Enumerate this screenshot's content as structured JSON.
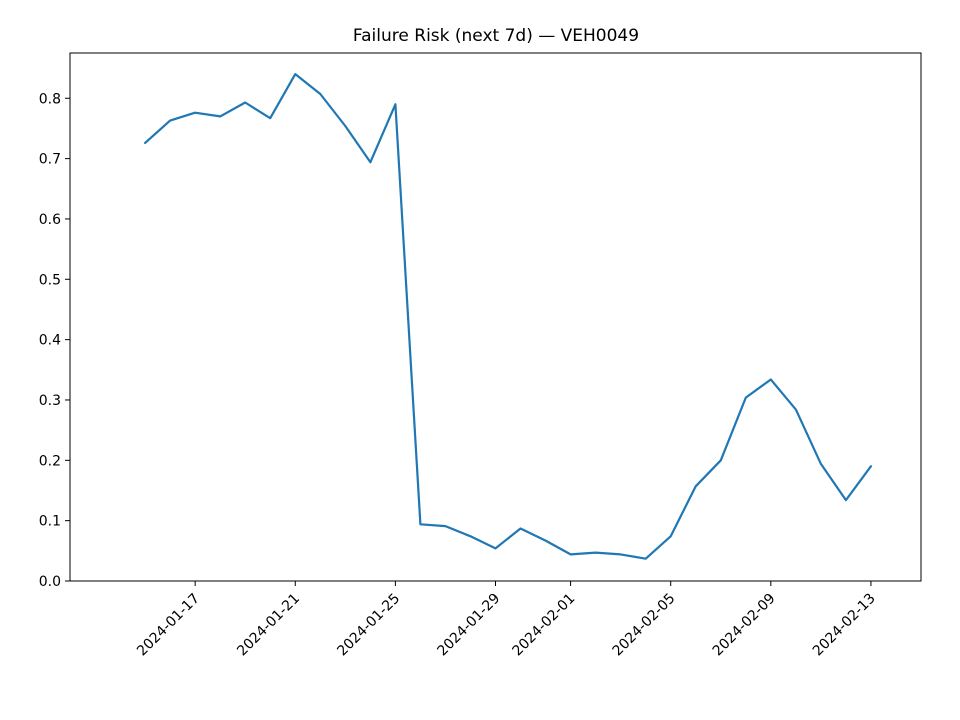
{
  "chart_data": {
    "type": "line",
    "title": "Failure Risk (next 7d) — VEH0049",
    "xlabel": "",
    "ylabel": "",
    "x_range": [
      "2024-01-12",
      "2024-02-15"
    ],
    "ylim": [
      0.0,
      0.875
    ],
    "grid": false,
    "legend": "none",
    "x_tick_dates": [
      "2024-01-17",
      "2024-01-21",
      "2024-01-25",
      "2024-01-29",
      "2024-02-01",
      "2024-02-05",
      "2024-02-09",
      "2024-02-13"
    ],
    "x_tick_labels": [
      "2024-01-17",
      "2024-01-21",
      "2024-01-25",
      "2024-01-29",
      "2024-02-01",
      "2024-02-05",
      "2024-02-09",
      "2024-02-13"
    ],
    "y_ticks": [
      0.0,
      0.1,
      0.2,
      0.3,
      0.4,
      0.5,
      0.6,
      0.7,
      0.8
    ],
    "y_tick_labels": [
      "0.0",
      "0.1",
      "0.2",
      "0.3",
      "0.4",
      "0.5",
      "0.6",
      "0.7",
      "0.8"
    ],
    "series": [
      {
        "color": "#1f77b4",
        "x": [
          "2024-01-15",
          "2024-01-16",
          "2024-01-17",
          "2024-01-18",
          "2024-01-19",
          "2024-01-20",
          "2024-01-21",
          "2024-01-22",
          "2024-01-23",
          "2024-01-24",
          "2024-01-25",
          "2024-01-26",
          "2024-01-27",
          "2024-01-28",
          "2024-01-29",
          "2024-01-30",
          "2024-01-31",
          "2024-02-01",
          "2024-02-02",
          "2024-02-03",
          "2024-02-04",
          "2024-02-05",
          "2024-02-06",
          "2024-02-07",
          "2024-02-08",
          "2024-02-09",
          "2024-02-10",
          "2024-02-11",
          "2024-02-12",
          "2024-02-13"
        ],
        "values": [
          0.726,
          0.763,
          0.776,
          0.77,
          0.793,
          0.767,
          0.84,
          0.807,
          0.754,
          0.694,
          0.79,
          0.094,
          0.091,
          0.074,
          0.054,
          0.087,
          0.067,
          0.044,
          0.047,
          0.044,
          0.037,
          0.074,
          0.157,
          0.2,
          0.304,
          0.334,
          0.284,
          0.194,
          0.134,
          0.19
        ]
      }
    ]
  }
}
